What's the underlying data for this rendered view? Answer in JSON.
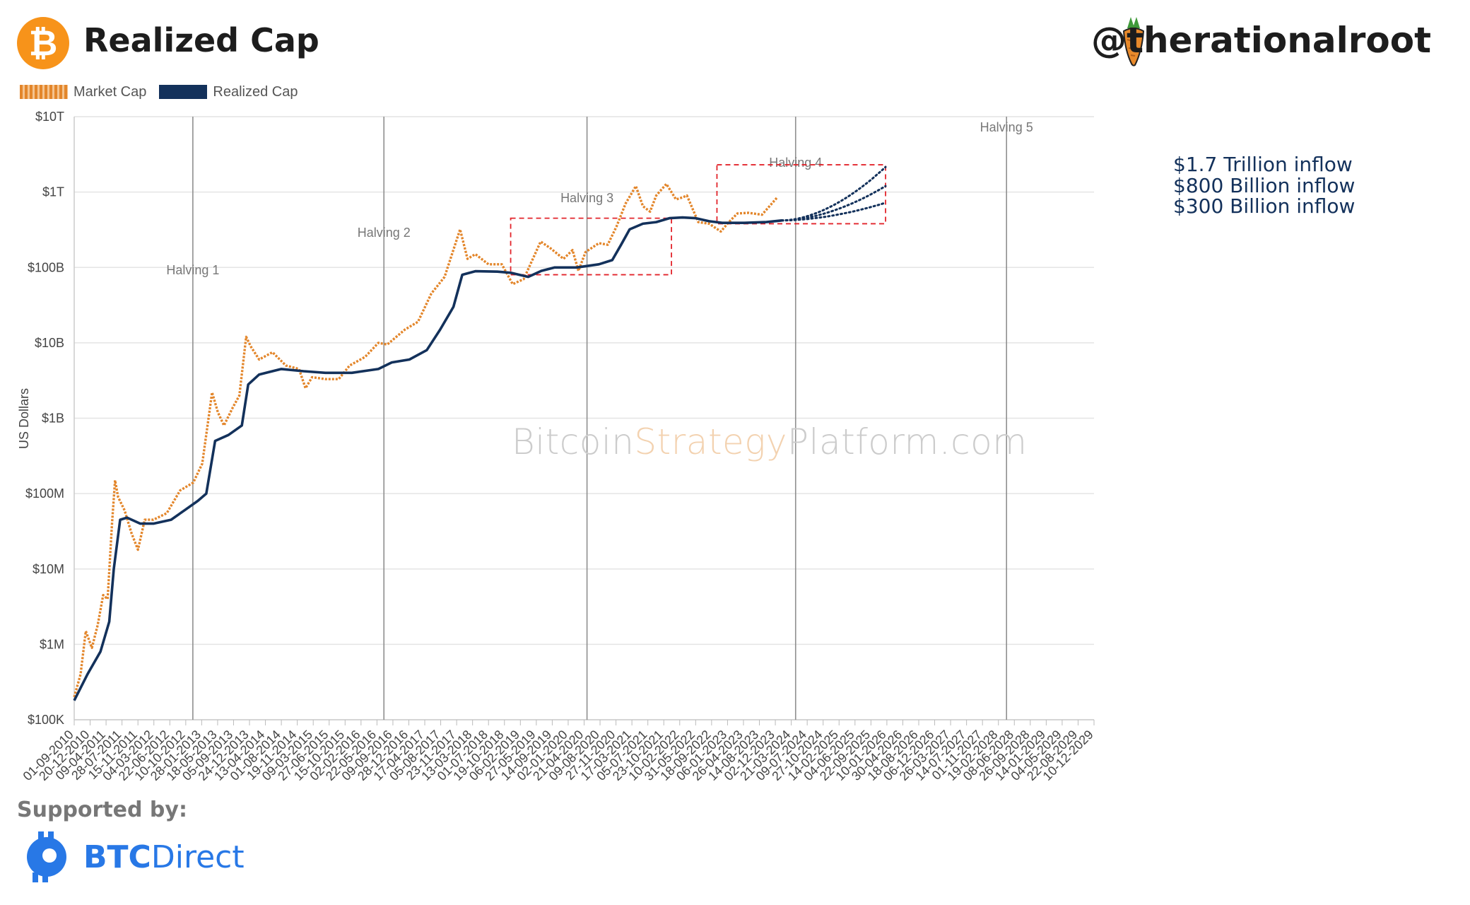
{
  "header": {
    "title": "Realized Cap",
    "handle": "@therationalroot",
    "btc_symbol": "₿"
  },
  "legend": {
    "market_cap": "Market Cap",
    "realized_cap": "Realized Cap"
  },
  "watermark": {
    "part1": "Bitcoin",
    "part2": "Strategy",
    "part3": "Platform.com"
  },
  "footer": {
    "supported_by": "Supported by:",
    "sponsor_bold": "BTC",
    "sponsor_rest": "Direct"
  },
  "colors": {
    "market_cap": "#e3862b",
    "realized_cap": "#13315b",
    "highlight_box": "#e2242b",
    "bitcoin_orange": "#f7931a",
    "sponsor_blue": "#2878e6"
  },
  "chart_data": {
    "type": "line",
    "scale": "log",
    "ylabel": "US Dollars",
    "y_ticks": [
      {
        "value": 100000,
        "label": "$100K"
      },
      {
        "value": 1000000,
        "label": "$1M"
      },
      {
        "value": 10000000,
        "label": "$10M"
      },
      {
        "value": 100000000,
        "label": "$100M"
      },
      {
        "value": 1000000000,
        "label": "$1B"
      },
      {
        "value": 10000000000,
        "label": "$10B"
      },
      {
        "value": 100000000000,
        "label": "$100B"
      },
      {
        "value": 1000000000000,
        "label": "$1T"
      },
      {
        "value": 10000000000000,
        "label": "$10T"
      }
    ],
    "ylim": [
      100000,
      10000000000000
    ],
    "xlim": [
      "2010-09-01",
      "2029-12-10"
    ],
    "x_tick_labels": [
      "01-09-2010",
      "20-12-2010",
      "09-04-2011",
      "28-07-2011",
      "15-11-2011",
      "04-03-2012",
      "22-06-2012",
      "10-10-2012",
      "28-01-2013",
      "18-05-2013",
      "05-09-2013",
      "24-12-2013",
      "13-04-2014",
      "01-08-2014",
      "19-11-2014",
      "09-03-2015",
      "27-06-2015",
      "15-10-2015",
      "02-02-2016",
      "22-05-2016",
      "09-09-2016",
      "28-12-2016",
      "17-04-2017",
      "05-08-2017",
      "23-11-2017",
      "13-03-2018",
      "01-07-2018",
      "19-10-2018",
      "06-02-2019",
      "27-05-2019",
      "14-09-2019",
      "02-01-2020",
      "21-04-2020",
      "09-08-2020",
      "27-11-2020",
      "17-03-2021",
      "05-07-2021",
      "23-10-2021",
      "10-02-2022",
      "31-05-2022",
      "18-09-2022",
      "06-01-2023",
      "26-04-2023",
      "14-08-2023",
      "02-12-2023",
      "21-03-2024",
      "09-07-2024",
      "27-10-2024",
      "14-02-2025",
      "04-06-2025",
      "22-09-2025",
      "10-01-2026",
      "30-04-2026",
      "18-08-2026",
      "06-12-2026",
      "26-03-2027",
      "14-07-2027",
      "01-11-2027",
      "19-02-2028",
      "08-06-2028",
      "26-09-2028",
      "14-01-2029",
      "04-05-2029",
      "22-08-2029",
      "10-12-2029"
    ],
    "halvings": [
      {
        "label": "Halving 1",
        "date": "2012-11-28"
      },
      {
        "label": "Halving 2",
        "date": "2016-07-09"
      },
      {
        "label": "Halving 3",
        "date": "2020-05-11"
      },
      {
        "label": "Halving 4",
        "date": "2024-04-20"
      },
      {
        "label": "Halving 5",
        "date": "2028-04-15"
      }
    ],
    "series": [
      {
        "name": "Market Cap",
        "points": [
          [
            "2010-09-01",
            200000
          ],
          [
            "2010-10-15",
            400000
          ],
          [
            "2010-11-20",
            1500000
          ],
          [
            "2011-01-01",
            900000
          ],
          [
            "2011-02-10",
            1800000
          ],
          [
            "2011-03-20",
            4500000
          ],
          [
            "2011-04-20",
            4000000
          ],
          [
            "2011-05-20",
            40000000
          ],
          [
            "2011-06-10",
            150000000
          ],
          [
            "2011-07-01",
            90000000
          ],
          [
            "2011-08-15",
            60000000
          ],
          [
            "2011-10-01",
            30000000
          ],
          [
            "2011-11-15",
            18000000
          ],
          [
            "2012-01-01",
            45000000
          ],
          [
            "2012-03-01",
            45000000
          ],
          [
            "2012-06-01",
            55000000
          ],
          [
            "2012-09-01",
            110000000
          ],
          [
            "2012-12-01",
            140000000
          ],
          [
            "2013-02-01",
            250000000
          ],
          [
            "2013-04-10",
            2200000000
          ],
          [
            "2013-05-20",
            1200000000
          ],
          [
            "2013-07-01",
            800000000
          ],
          [
            "2013-09-01",
            1400000000
          ],
          [
            "2013-10-15",
            2000000000
          ],
          [
            "2013-12-01",
            12000000000
          ],
          [
            "2014-01-01",
            9000000000
          ],
          [
            "2014-03-01",
            6000000000
          ],
          [
            "2014-06-01",
            7500000000
          ],
          [
            "2014-09-01",
            5000000000
          ],
          [
            "2014-12-01",
            4500000000
          ],
          [
            "2015-01-15",
            2500000000
          ],
          [
            "2015-03-01",
            3500000000
          ],
          [
            "2015-06-01",
            3300000000
          ],
          [
            "2015-09-01",
            3300000000
          ],
          [
            "2015-11-15",
            5000000000
          ],
          [
            "2016-03-01",
            6500000000
          ],
          [
            "2016-06-01",
            10000000000
          ],
          [
            "2016-08-01",
            9500000000
          ],
          [
            "2016-12-01",
            15000000000
          ],
          [
            "2017-03-01",
            19000000000
          ],
          [
            "2017-06-01",
            45000000000
          ],
          [
            "2017-09-01",
            75000000000
          ],
          [
            "2017-12-17",
            320000000000
          ],
          [
            "2018-02-06",
            130000000000
          ],
          [
            "2018-04-01",
            150000000000
          ],
          [
            "2018-07-01",
            110000000000
          ],
          [
            "2018-10-01",
            110000000000
          ],
          [
            "2018-12-15",
            60000000000
          ],
          [
            "2019-03-01",
            70000000000
          ],
          [
            "2019-06-26",
            220000000000
          ],
          [
            "2019-09-01",
            180000000000
          ],
          [
            "2019-12-01",
            130000000000
          ],
          [
            "2020-02-01",
            170000000000
          ],
          [
            "2020-03-13",
            90000000000
          ],
          [
            "2020-05-01",
            160000000000
          ],
          [
            "2020-08-01",
            210000000000
          ],
          [
            "2020-10-01",
            200000000000
          ],
          [
            "2020-12-01",
            350000000000
          ],
          [
            "2021-02-01",
            700000000000
          ],
          [
            "2021-04-13",
            1200000000000
          ],
          [
            "2021-06-01",
            650000000000
          ],
          [
            "2021-07-20",
            550000000000
          ],
          [
            "2021-09-01",
            900000000000
          ],
          [
            "2021-11-10",
            1280000000000
          ],
          [
            "2022-01-15",
            800000000000
          ],
          [
            "2022-03-01",
            850000000000
          ],
          [
            "2022-04-01",
            900000000000
          ],
          [
            "2022-06-18",
            400000000000
          ],
          [
            "2022-09-01",
            380000000000
          ],
          [
            "2022-11-21",
            300000000000
          ],
          [
            "2023-01-15",
            400000000000
          ],
          [
            "2023-03-15",
            520000000000
          ],
          [
            "2023-06-01",
            530000000000
          ],
          [
            "2023-09-01",
            500000000000
          ],
          [
            "2023-11-01",
            680000000000
          ],
          [
            "2023-12-15",
            850000000000
          ]
        ]
      },
      {
        "name": "Realized Cap",
        "points": [
          [
            "2010-09-01",
            180000
          ],
          [
            "2010-12-01",
            400000
          ],
          [
            "2011-03-01",
            800000
          ],
          [
            "2011-05-01",
            2000000
          ],
          [
            "2011-06-01",
            10000000
          ],
          [
            "2011-07-15",
            45000000
          ],
          [
            "2011-09-01",
            48000000
          ],
          [
            "2011-12-01",
            40000000
          ],
          [
            "2012-03-01",
            40000000
          ],
          [
            "2012-07-01",
            45000000
          ],
          [
            "2012-10-01",
            60000000
          ],
          [
            "2013-01-01",
            80000000
          ],
          [
            "2013-03-01",
            100000000
          ],
          [
            "2013-05-01",
            500000000
          ],
          [
            "2013-08-01",
            600000000
          ],
          [
            "2013-11-01",
            800000000
          ],
          [
            "2013-12-15",
            2800000000
          ],
          [
            "2014-03-01",
            3800000000
          ],
          [
            "2014-08-01",
            4500000000
          ],
          [
            "2015-01-01",
            4200000000
          ],
          [
            "2015-06-01",
            4000000000
          ],
          [
            "2015-12-01",
            4000000000
          ],
          [
            "2016-06-01",
            4500000000
          ],
          [
            "2016-09-01",
            5500000000
          ],
          [
            "2017-01-01",
            6000000000
          ],
          [
            "2017-05-01",
            8000000000
          ],
          [
            "2017-08-01",
            15000000000
          ],
          [
            "2017-11-01",
            30000000000
          ],
          [
            "2018-01-01",
            80000000000
          ],
          [
            "2018-04-01",
            89000000000
          ],
          [
            "2018-09-01",
            88000000000
          ],
          [
            "2018-12-01",
            85000000000
          ],
          [
            "2019-04-01",
            75000000000
          ],
          [
            "2019-07-01",
            90000000000
          ],
          [
            "2019-10-01",
            100000000000
          ],
          [
            "2020-03-01",
            100000000000
          ],
          [
            "2020-08-01",
            110000000000
          ],
          [
            "2020-11-01",
            125000000000
          ],
          [
            "2021-01-01",
            200000000000
          ],
          [
            "2021-03-01",
            320000000000
          ],
          [
            "2021-06-01",
            380000000000
          ],
          [
            "2021-09-01",
            400000000000
          ],
          [
            "2021-12-01",
            450000000000
          ],
          [
            "2022-03-01",
            460000000000
          ],
          [
            "2022-06-01",
            450000000000
          ],
          [
            "2022-09-01",
            410000000000
          ],
          [
            "2022-12-01",
            390000000000
          ],
          [
            "2023-05-01",
            390000000000
          ],
          [
            "2023-10-01",
            400000000000
          ],
          [
            "2024-01-15",
            420000000000
          ]
        ]
      }
    ],
    "projections": [
      {
        "name": "$1.7 Trillion inflow",
        "start": [
          "2024-01-15",
          420000000000
        ],
        "end": [
          "2026-01-01",
          2150000000000
        ]
      },
      {
        "name": "$800 Billion inflow",
        "start": [
          "2024-01-15",
          420000000000
        ],
        "end": [
          "2026-01-01",
          1200000000000
        ]
      },
      {
        "name": "$300 Billion inflow",
        "start": [
          "2024-01-15",
          420000000000
        ],
        "end": [
          "2026-01-01",
          720000000000
        ]
      }
    ],
    "highlight_boxes": [
      {
        "x0": "2018-12-01",
        "x1": "2021-12-15",
        "y0": 80000000000,
        "y1": 450000000000
      },
      {
        "x0": "2022-10-25",
        "x1": "2026-01-01",
        "y0": 380000000000,
        "y1": 2300000000000
      }
    ]
  }
}
